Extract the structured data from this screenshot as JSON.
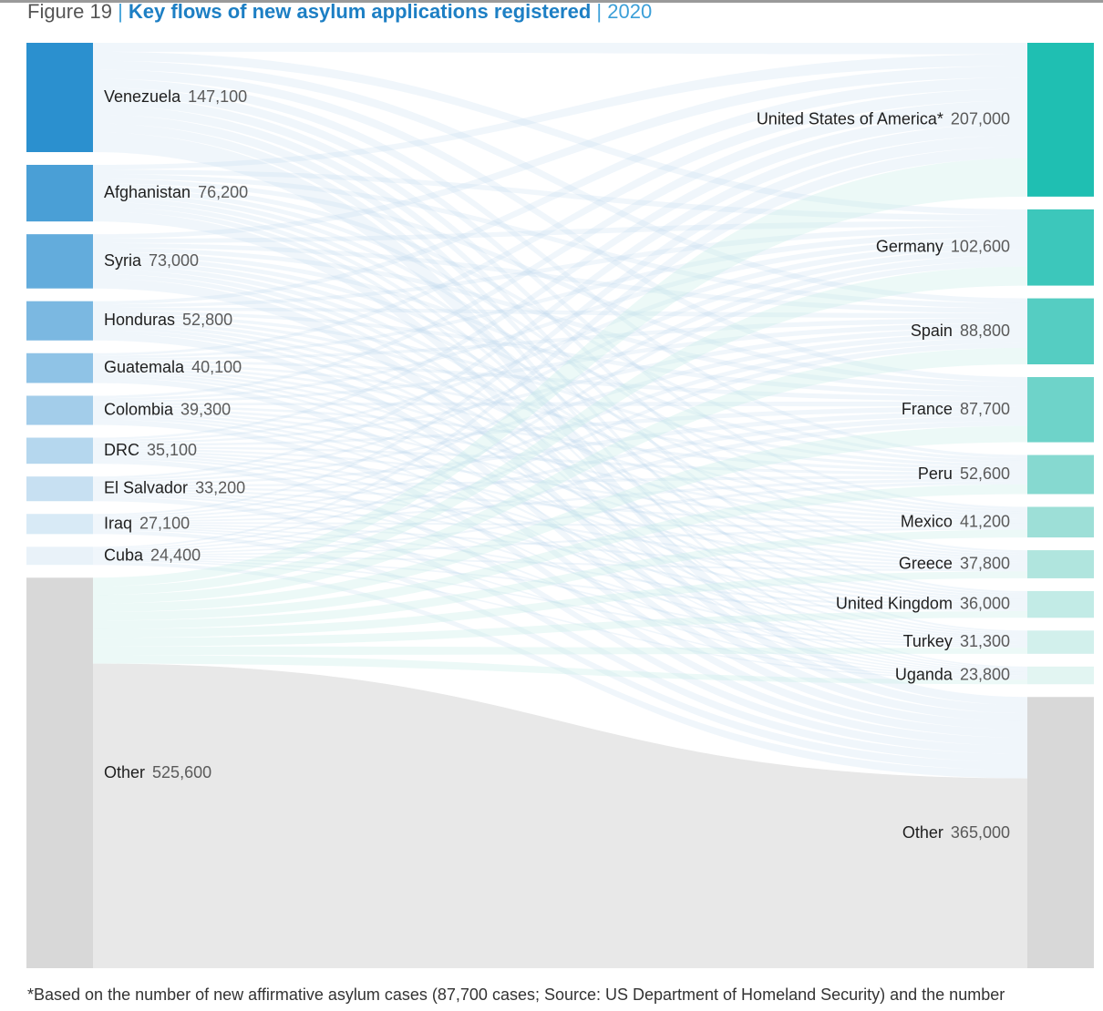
{
  "figure": {
    "number": "Figure 19",
    "separator": "|",
    "title": "Key flows of new asylum applications registered",
    "year": "2020",
    "footnote": "*Based on the number of new affirmative asylum cases (87,700 cases; Source: US Department of Homeland Security) and the number"
  },
  "colors": {
    "origin_bars": [
      "#2b90cf",
      "#4a9fd6",
      "#63acdc",
      "#7bb8e1",
      "#8fc3e6",
      "#a3cdea",
      "#b5d7ee",
      "#c7e0f2",
      "#d8eaf6",
      "#e9f2f9"
    ],
    "destination_bars": [
      "#1fbfb2",
      "#3cc7bb",
      "#55cdc2",
      "#6ed3c9",
      "#86d9d0",
      "#9ddfd7",
      "#b0e5de",
      "#c2ebe6",
      "#d2f0ec",
      "#e2f5f2"
    ],
    "other_bar": "#d8d8d8",
    "other_flow": "#e8e8e8",
    "origin_flow": "#bcd8ee",
    "destination_flow": "#c9eee9"
  },
  "chart_data": {
    "type": "sankey",
    "title": "Key flows of new asylum applications registered",
    "year": "2020",
    "origins": [
      {
        "name": "Venezuela",
        "value": 147100,
        "label": "147,100"
      },
      {
        "name": "Afghanistan",
        "value": 76200,
        "label": "76,200"
      },
      {
        "name": "Syria",
        "value": 73000,
        "label": "73,000"
      },
      {
        "name": "Honduras",
        "value": 52800,
        "label": "52,800"
      },
      {
        "name": "Guatemala",
        "value": 40100,
        "label": "40,100"
      },
      {
        "name": "Colombia",
        "value": 39300,
        "label": "39,300"
      },
      {
        "name": "DRC",
        "value": 35100,
        "label": "35,100"
      },
      {
        "name": "El Salvador",
        "value": 33200,
        "label": "33,200"
      },
      {
        "name": "Iraq",
        "value": 27100,
        "label": "27,100"
      },
      {
        "name": "Cuba",
        "value": 24400,
        "label": "24,400"
      },
      {
        "name": "Other",
        "value": 525600,
        "label": "525,600"
      }
    ],
    "destinations": [
      {
        "name": "United States of America*",
        "value": 207000,
        "label": "207,000"
      },
      {
        "name": "Germany",
        "value": 102600,
        "label": "102,600"
      },
      {
        "name": "Spain",
        "value": 88800,
        "label": "88,800"
      },
      {
        "name": "France",
        "value": 87700,
        "label": "87,700"
      },
      {
        "name": "Peru",
        "value": 52600,
        "label": "52,600"
      },
      {
        "name": "Mexico",
        "value": 41200,
        "label": "41,200"
      },
      {
        "name": "Greece",
        "value": 37800,
        "label": "37,800"
      },
      {
        "name": "United Kingdom",
        "value": 36000,
        "label": "36,000"
      },
      {
        "name": "Turkey",
        "value": 31300,
        "label": "31,300"
      },
      {
        "name": "Uganda",
        "value": 23800,
        "label": "23,800"
      },
      {
        "name": "Other",
        "value": 365000,
        "label": "365,000"
      }
    ]
  }
}
